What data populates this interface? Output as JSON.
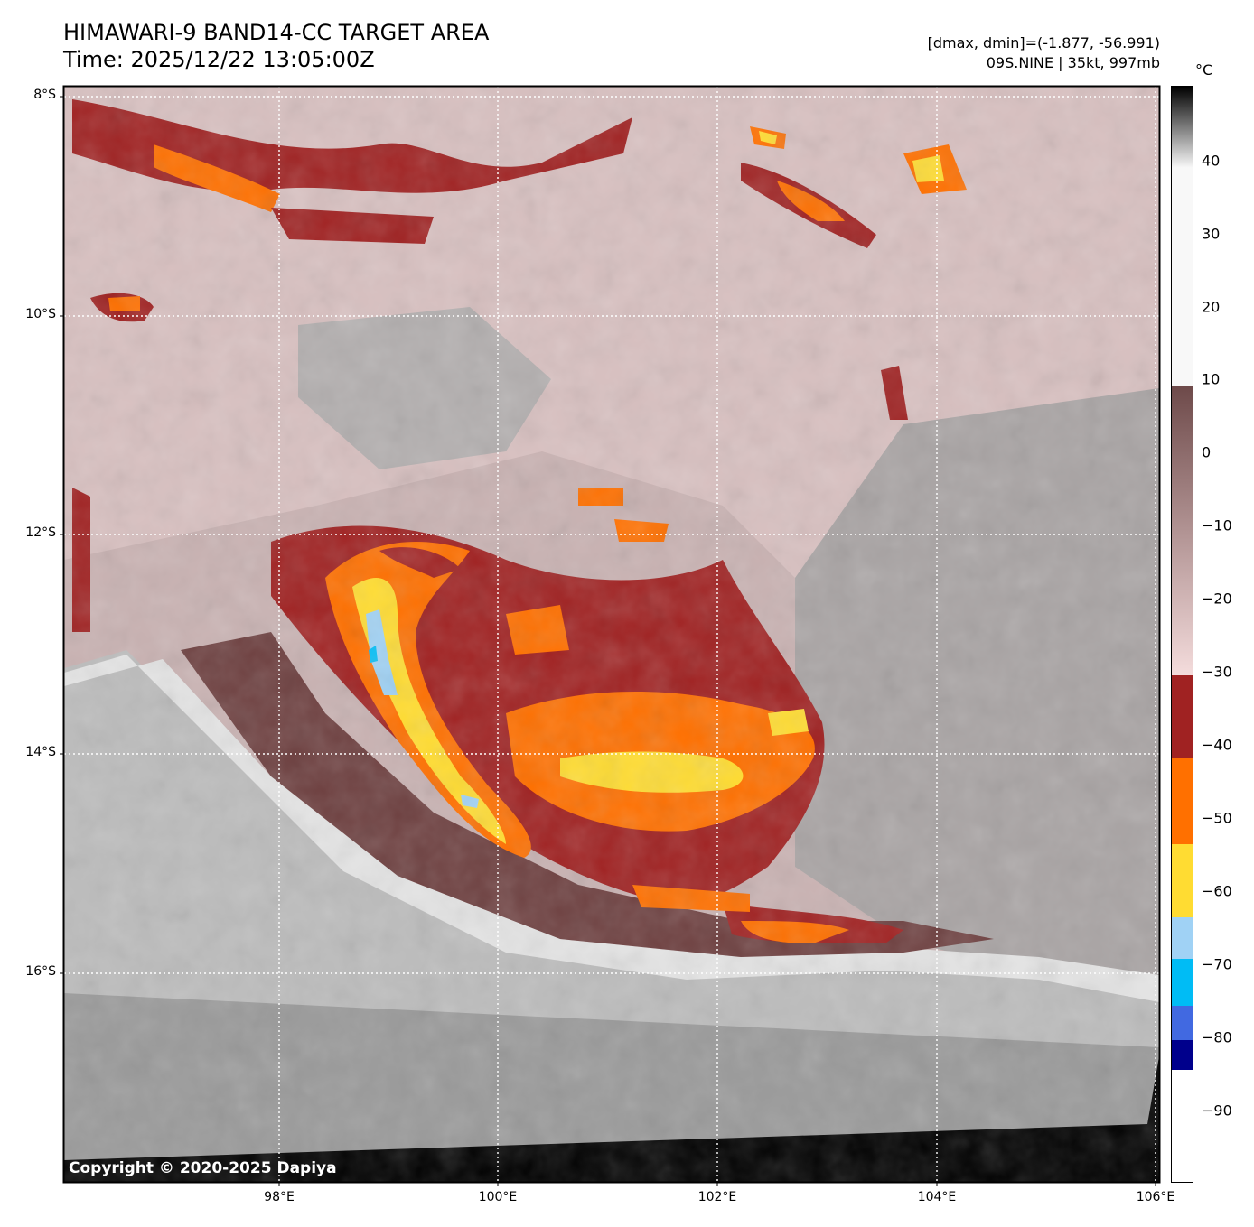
{
  "header": {
    "title_line1": "HIMAWARI-9 BAND14-CC TARGET AREA",
    "title_line2": "Time: 2025/12/22 13:05:00Z",
    "range_text": "[dmax, dmin]=(-1.877, -56.991)",
    "storm_text": "09S.NINE | 35kt, 997mb"
  },
  "map": {
    "lat_labels": [
      "8°S",
      "10°S",
      "12°S",
      "14°S",
      "16°S"
    ],
    "lon_labels": [
      "98°E",
      "100°E",
      "102°E",
      "104°E",
      "106°E"
    ],
    "copyright": "Copyright © 2020-2025 Dapiya"
  },
  "colorbar": {
    "unit": "°C",
    "tick_labels": [
      "40",
      "30",
      "20",
      "10",
      "0",
      "−10",
      "−20",
      "−30",
      "−40",
      "−50",
      "−60",
      "−70",
      "−80",
      "−90"
    ],
    "range": [
      -100,
      50
    ],
    "colors": {
      "warm_black": "#000000",
      "grey_white": "#f5f5f5",
      "pink": "#f2d6d6",
      "brown": "#6e4040",
      "dark_red": "#a02222",
      "orange": "#ff7000",
      "yellow": "#ffdc32",
      "light_blue": "#a0d2f5",
      "cyan": "#00bcf5",
      "royal_blue": "#4169e1",
      "navy": "#00008c",
      "white": "#ffffff"
    }
  }
}
